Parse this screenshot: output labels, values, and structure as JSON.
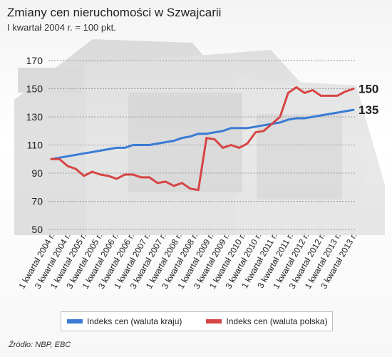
{
  "header": {
    "title": "Zmiany cen nieruchomości w Szwajcarii",
    "subtitle": "I kwartał 2004 r. = 100 pkt."
  },
  "source": "Źródło: NBP, EBC",
  "colors": {
    "blue": "#3a7bd5",
    "red": "#d64545"
  },
  "chart_data": {
    "type": "line",
    "title": "Zmiany cen nieruchomości w Szwajcarii",
    "subtitle": "I kwartał 2004 r. = 100 pkt.",
    "yticks": [
      50,
      70,
      90,
      110,
      130,
      150,
      170
    ],
    "ylim": [
      50,
      170
    ],
    "grid": true,
    "legend_position": "bottom",
    "x_tick_labels": [
      "1 kwartał 2004 r.",
      "3 kwartał 2004 r.",
      "1 kwartał 2005 r.",
      "3 kwartał 2005 r.",
      "1 kwartał 2006 r.",
      "3 kwartał 2006 r.",
      "1 kwartał 2007 r.",
      "3 kwartał 2007 r.",
      "1 kwartał 2008 r.",
      "3 kwartał 2008 r.",
      "1 kwartał 2009 r.",
      "3 kwartał 2009 r.",
      "1 kwartał 2010 r.",
      "3 kwartał 2010 r.",
      "1 kwartał 2011 r.",
      "3 kwartał 2011 r.",
      "1 kwartał 2012 r.",
      "3 kwartał 2012 r.",
      "1 kwartał 2013 r.",
      "3 kwartał 2013 r."
    ],
    "series": [
      {
        "name": "Indeks cen (waluta kraju)",
        "color": "#3a7bd5",
        "end_label": "135",
        "values": [
          100,
          101,
          102,
          103,
          104,
          105,
          106,
          107,
          108,
          108,
          110,
          110,
          110,
          111,
          112,
          113,
          115,
          116,
          118,
          118,
          119,
          120,
          122,
          122,
          122,
          123,
          124,
          125,
          126,
          128,
          129,
          129,
          130,
          131,
          132,
          133,
          134,
          135
        ]
      },
      {
        "name": "Indeks cen (waluta polska)",
        "color": "#d64545",
        "end_label": "150",
        "values": [
          100,
          100,
          95,
          93,
          88,
          91,
          89,
          88,
          86,
          89,
          89,
          87,
          87,
          83,
          84,
          81,
          83,
          79,
          78,
          115,
          114,
          108,
          110,
          108,
          111,
          119,
          120,
          125,
          130,
          147,
          151,
          147,
          149,
          145,
          145,
          145,
          148,
          150
        ]
      }
    ]
  }
}
